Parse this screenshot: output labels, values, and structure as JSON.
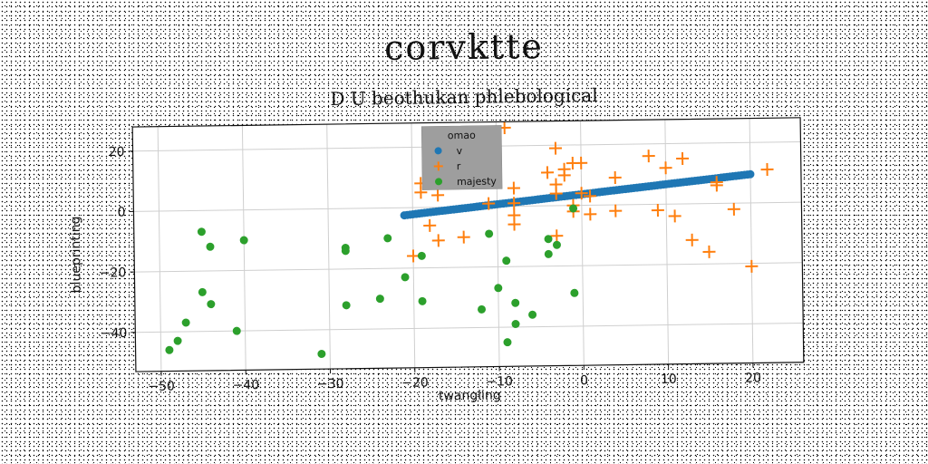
{
  "chart_data": {
    "type": "scatter",
    "title": "corvktte",
    "subtitle": "D U beothukan phlebological",
    "xlabel": "twangling",
    "ylabel": "blueprinting",
    "xlim": [
      -53,
      26
    ],
    "ylim": [
      -53,
      28
    ],
    "xticks": [
      -50,
      -40,
      -30,
      -20,
      -10,
      0,
      10,
      20
    ],
    "yticks": [
      -40,
      -20,
      0,
      20
    ],
    "grid": true,
    "legend": {
      "title": "omao",
      "placement": "top-center",
      "background": "#9e9e9e"
    },
    "series": [
      {
        "name": "v",
        "marker": "circle",
        "color": "#1f77b4",
        "line_from": [
          -21,
          -2.5
        ],
        "line_to": [
          20,
          9.5
        ],
        "count": 120
      },
      {
        "name": "r",
        "marker": "plus",
        "color": "#ff7f0e",
        "points": [
          [
            -9,
            26
          ],
          [
            -3,
            19
          ],
          [
            8,
            16
          ],
          [
            12,
            15
          ],
          [
            -1,
            14
          ],
          [
            0,
            14
          ],
          [
            10,
            12
          ],
          [
            -2,
            12
          ],
          [
            22,
            11
          ],
          [
            -4,
            11
          ],
          [
            -2,
            10
          ],
          [
            4,
            9
          ],
          [
            -19,
            8
          ],
          [
            -3,
            7
          ],
          [
            16,
            7
          ],
          [
            16,
            6
          ],
          [
            -8,
            6
          ],
          [
            -19,
            5
          ],
          [
            -17,
            4
          ],
          [
            -3,
            4
          ],
          [
            0,
            4
          ],
          [
            1,
            3
          ],
          [
            -11,
            1
          ],
          [
            -8,
            1
          ],
          [
            -1,
            0
          ],
          [
            4,
            -2
          ],
          [
            9,
            -2
          ],
          [
            18,
            -2
          ],
          [
            -1,
            -2
          ],
          [
            1,
            -3
          ],
          [
            -8,
            -3
          ],
          [
            11,
            -4
          ],
          [
            -8,
            -6
          ],
          [
            -18,
            -6
          ],
          [
            -14,
            -10
          ],
          [
            -3,
            -10
          ],
          [
            -17,
            -11
          ],
          [
            13,
            -12
          ],
          [
            15,
            -16
          ],
          [
            -20,
            -16
          ],
          [
            20,
            -21
          ]
        ]
      },
      {
        "name": "majesty",
        "marker": "circle",
        "color": "#2ca02c",
        "points": [
          [
            -1,
            -1
          ],
          [
            -45,
            -7
          ],
          [
            -40,
            -10
          ],
          [
            -23,
            -10
          ],
          [
            -11,
            -9
          ],
          [
            -4,
            -11
          ],
          [
            -44,
            -12
          ],
          [
            -28,
            -13
          ],
          [
            -28,
            -14
          ],
          [
            -3,
            -13
          ],
          [
            -4,
            -16
          ],
          [
            -19,
            -16
          ],
          [
            -9,
            -18
          ],
          [
            -21,
            -23
          ],
          [
            -45,
            -27
          ],
          [
            -10,
            -27
          ],
          [
            -1,
            -29
          ],
          [
            -24,
            -30
          ],
          [
            -44,
            -31
          ],
          [
            -19,
            -31
          ],
          [
            -28,
            -32
          ],
          [
            -8,
            -32
          ],
          [
            -12,
            -34
          ],
          [
            -6,
            -36
          ],
          [
            -47,
            -37
          ],
          [
            -41,
            -40
          ],
          [
            -8,
            -39
          ],
          [
            -48,
            -43
          ],
          [
            -49,
            -46
          ],
          [
            -9,
            -45
          ],
          [
            -31,
            -48
          ]
        ]
      }
    ]
  }
}
